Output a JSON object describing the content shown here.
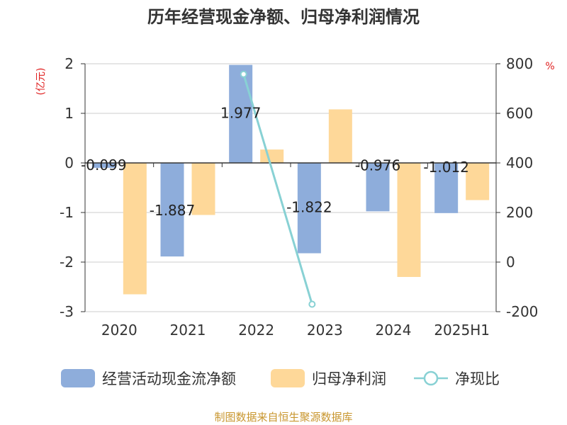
{
  "chart_data": {
    "type": "bar",
    "title": "历年经营现金净额、归母净利润情况",
    "categories": [
      "2020",
      "2021",
      "2022",
      "2023",
      "2024",
      "2025H1"
    ],
    "left_unit": "(亿元)",
    "right_unit": "%",
    "left_axis": {
      "min": -3,
      "max": 2,
      "ticks": [
        2,
        1,
        0,
        -1,
        -2,
        -3
      ]
    },
    "right_axis": {
      "min": -200,
      "max": 800,
      "ticks": [
        800,
        600,
        400,
        200,
        0,
        -200
      ]
    },
    "series": [
      {
        "name": "经营活动现金流净额",
        "axis": "left",
        "kind": "bar",
        "values": [
          -0.099,
          -1.887,
          1.977,
          -1.822,
          -0.976,
          -1.012
        ],
        "labels": [
          "-0.099",
          "-1.887",
          "1.977",
          "-1.822",
          "-0.976",
          "-1.012"
        ]
      },
      {
        "name": "归母净利润",
        "axis": "left",
        "kind": "bar",
        "values": [
          -2.65,
          -1.05,
          0.27,
          1.08,
          -2.3,
          -0.75
        ]
      },
      {
        "name": "净现比",
        "axis": "right",
        "kind": "line",
        "values": [
          null,
          null,
          758,
          -170,
          null,
          null
        ]
      }
    ],
    "colors": {
      "cash_flow": "#8EADDB",
      "net_profit": "#FED899",
      "ratio": "#88D1D4",
      "unit": "#E02020",
      "source": "#C8962E"
    },
    "grid": true,
    "legend": "bottom",
    "source": "制图数据来自恒生聚源数据库"
  }
}
